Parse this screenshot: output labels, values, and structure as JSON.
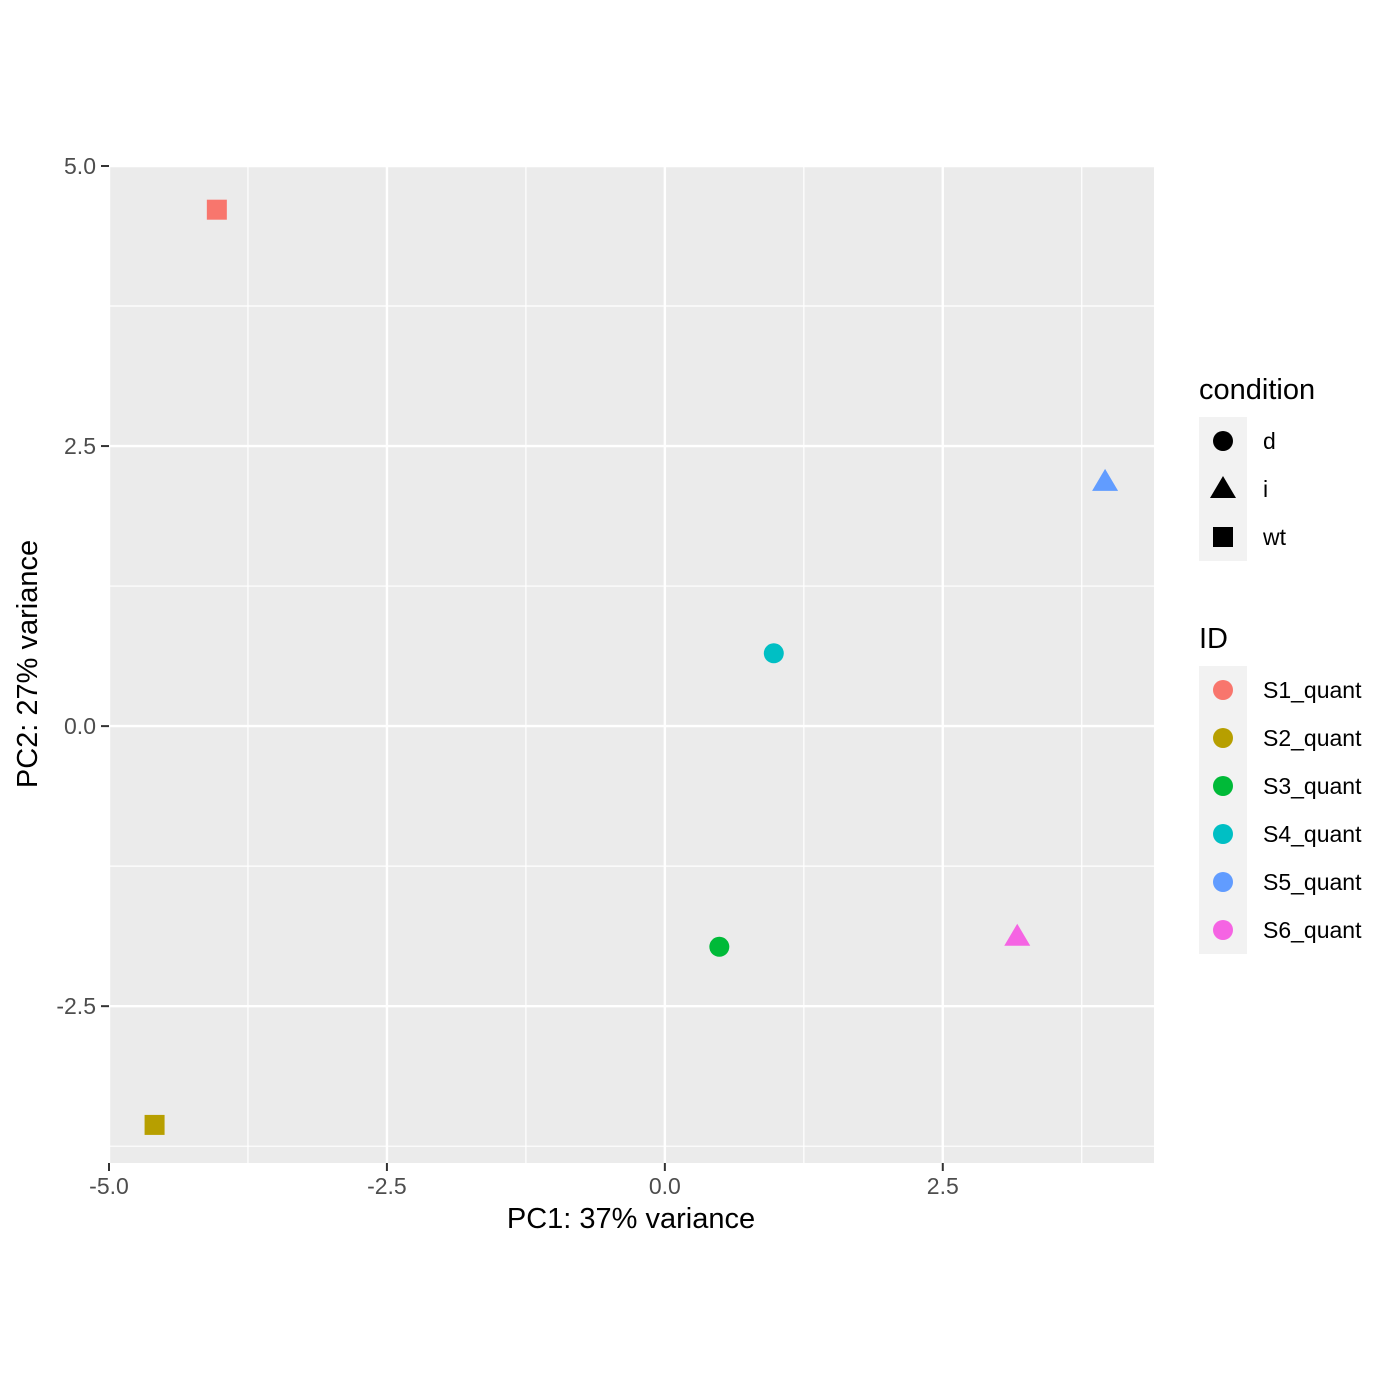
{
  "chart_data": {
    "type": "scatter",
    "title": "",
    "xlabel": "PC1: 37% variance",
    "ylabel": "PC2: 27% variance",
    "xlim": [
      -5.0,
      4.4
    ],
    "ylim": [
      -3.9,
      5.0
    ],
    "x_ticks": [
      -5.0,
      -2.5,
      0.0,
      2.5
    ],
    "x_tick_labels": [
      "-5.0",
      "-2.5",
      "0.0",
      "2.5"
    ],
    "y_ticks": [
      5.0,
      2.5,
      0.0,
      -2.5
    ],
    "y_tick_labels": [
      "5.0",
      "2.5",
      "0.0",
      "-2.5"
    ],
    "x_minor": [
      -3.75,
      -1.25,
      1.25,
      3.75
    ],
    "y_minor": [
      3.75,
      1.25,
      -1.25,
      -3.75
    ],
    "grid": true,
    "legend_placement": "right",
    "points": [
      {
        "id": "S1_quant",
        "condition": "wt",
        "x": -4.03,
        "y": 4.61
      },
      {
        "id": "S2_quant",
        "condition": "wt",
        "x": -4.59,
        "y": -3.56
      },
      {
        "id": "S3_quant",
        "condition": "d",
        "x": 0.49,
        "y": -1.97
      },
      {
        "id": "S4_quant",
        "condition": "d",
        "x": 0.98,
        "y": 0.65
      },
      {
        "id": "S5_quant",
        "condition": "i",
        "x": 3.96,
        "y": 2.18
      },
      {
        "id": "S6_quant",
        "condition": "i",
        "x": 3.17,
        "y": -1.88
      }
    ],
    "legend_condition": {
      "title": "condition",
      "items": [
        {
          "label": "d",
          "shape": "circle"
        },
        {
          "label": "i",
          "shape": "triangle"
        },
        {
          "label": "wt",
          "shape": "square"
        }
      ]
    },
    "legend_id": {
      "title": "ID",
      "items": [
        {
          "label": "S1_quant",
          "color": "#F8766D"
        },
        {
          "label": "S2_quant",
          "color": "#B79F00"
        },
        {
          "label": "S3_quant",
          "color": "#00BA38"
        },
        {
          "label": "S4_quant",
          "color": "#00BFC4"
        },
        {
          "label": "S5_quant",
          "color": "#619CFF"
        },
        {
          "label": "S6_quant",
          "color": "#F564E3"
        }
      ]
    }
  }
}
